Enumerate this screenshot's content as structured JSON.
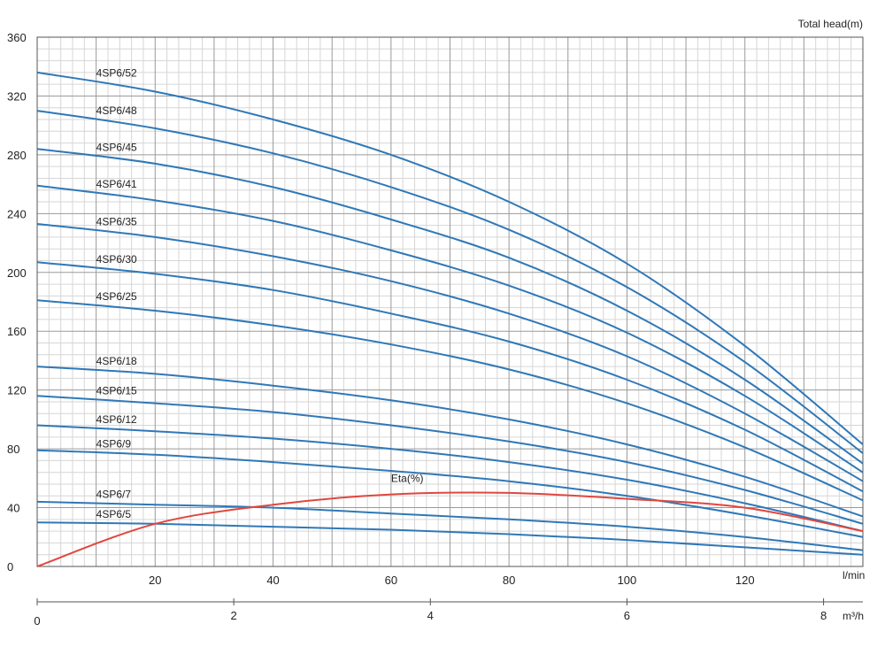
{
  "chart_data": {
    "type": "line",
    "y_axis_label": "Total head(m)",
    "x_axis_label": "l/min",
    "x2_axis_label": "m³/h",
    "xlim": [
      0,
      140
    ],
    "ylim": [
      0,
      360
    ],
    "x_ticks": [
      0,
      20,
      40,
      60,
      80,
      100,
      120
    ],
    "x_tick_labels": [
      "",
      "20",
      "40",
      "60",
      "80",
      "100",
      "120"
    ],
    "x2_ticks": [
      0,
      2,
      4,
      6,
      8
    ],
    "x2_tick_labels": [
      "0",
      "2",
      "4",
      "6",
      "8"
    ],
    "y_ticks": [
      0,
      40,
      80,
      120,
      160,
      200,
      240,
      280,
      320,
      360
    ],
    "y_tick_labels": [
      "0",
      "40",
      "80",
      "120",
      "160",
      "200",
      "240",
      "280",
      "320",
      "360"
    ],
    "grid": true,
    "x": [
      0,
      20,
      40,
      60,
      80,
      100,
      120,
      140
    ],
    "series": [
      {
        "name": "4SP6/52",
        "values": [
          336,
          323,
          304,
          280,
          248,
          206,
          150,
          83
        ],
        "color": "#2f78b7"
      },
      {
        "name": "4SP6/48",
        "values": [
          310,
          298,
          281,
          258,
          229,
          190,
          139,
          77
        ],
        "color": "#2f78b7"
      },
      {
        "name": "4SP6/45",
        "values": [
          284,
          274,
          258,
          236,
          210,
          174,
          127,
          70
        ],
        "color": "#2f78b7"
      },
      {
        "name": "4SP6/41",
        "values": [
          259,
          249,
          235,
          215,
          191,
          159,
          116,
          64
        ],
        "color": "#2f78b7"
      },
      {
        "name": "4SP6/35",
        "values": [
          233,
          224,
          211,
          194,
          172,
          143,
          104,
          58
        ],
        "color": "#2f78b7"
      },
      {
        "name": "4SP6/30",
        "values": [
          207,
          199,
          188,
          172,
          153,
          127,
          93,
          51
        ],
        "color": "#2f78b7"
      },
      {
        "name": "4SP6/25",
        "values": [
          181,
          174,
          164,
          151,
          134,
          111,
          81,
          45
        ],
        "color": "#2f78b7"
      },
      {
        "name": "4SP6/18",
        "values": [
          136,
          131,
          123,
          113,
          100,
          83,
          61,
          34
        ],
        "color": "#2f78b7"
      },
      {
        "name": "4SP6/15",
        "values": [
          116,
          111,
          105,
          96,
          85,
          71,
          52,
          29
        ],
        "color": "#2f78b7"
      },
      {
        "name": "4SP6/12",
        "values": [
          96,
          92,
          87,
          80,
          71,
          59,
          43,
          24
        ],
        "color": "#2f78b7"
      },
      {
        "name": "4SP6/9",
        "values": [
          79,
          76,
          71,
          65,
          58,
          48,
          35,
          20
        ],
        "color": "#2f78b7"
      },
      {
        "name": "4SP6/7",
        "values": [
          44,
          42,
          40,
          36,
          32,
          27,
          20,
          11
        ],
        "color": "#2f78b7"
      },
      {
        "name": "4SP6/5",
        "values": [
          30,
          29,
          27,
          25,
          22,
          18,
          13,
          8
        ],
        "color": "#2f78b7"
      },
      {
        "name": "Eta(%)",
        "values": [
          0,
          29,
          42,
          49,
          50,
          46,
          40,
          24
        ],
        "color": "#e0473f"
      }
    ]
  }
}
